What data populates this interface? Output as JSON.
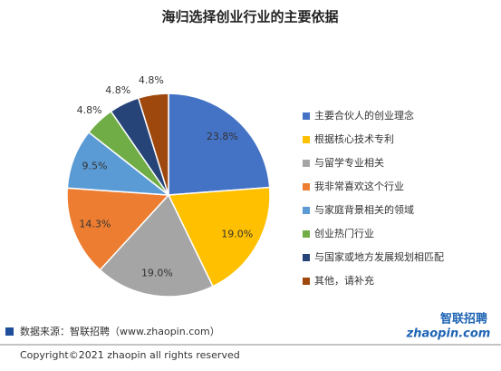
{
  "chart_data": {
    "type": "pie",
    "title": "海归选择创业行业的主要依据",
    "categories": [
      "主要合伙人的创业理念",
      "根据核心技术专利",
      "与留学专业相关",
      "我非常喜欢这个行业",
      "与家庭背景相关的领域",
      "创业热门行业",
      "与国家或地方发展规划相匹配",
      "其他，请补充"
    ],
    "values": [
      23.8,
      19.0,
      19.0,
      14.3,
      9.5,
      4.8,
      4.8,
      4.8
    ],
    "value_labels": [
      "23.8%",
      "19.0%",
      "19.0%",
      "14.3%",
      "9.5%",
      "4.8%",
      "4.8%",
      "4.8%"
    ],
    "colors": [
      "#4472c4",
      "#ffc000",
      "#a5a5a5",
      "#ed7d31",
      "#5b9bd5",
      "#70ad47",
      "#264478",
      "#9e480e"
    ],
    "legend": "right"
  },
  "footer": {
    "source": "数据来源：智联招聘（www.zhaopin.com）",
    "copyright": "Copyright©2021 zhaopin all rights reserved",
    "logo_cn": "智联招聘",
    "logo_en": "zhaopin.com"
  }
}
